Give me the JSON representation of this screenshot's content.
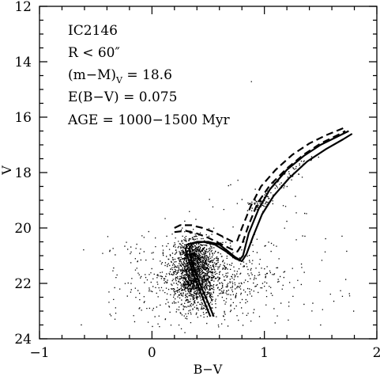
{
  "chart_data": {
    "type": "scatter",
    "xlabel": "B−V",
    "ylabel": "V",
    "xlim": [
      -1,
      2
    ],
    "ylim": [
      24,
      12
    ],
    "y_inverted": true,
    "x_ticks": [
      -1,
      0,
      1,
      2
    ],
    "x_tick_labels": [
      "−1",
      "0",
      "1",
      "2"
    ],
    "y_ticks": [
      12,
      14,
      16,
      18,
      20,
      22,
      24
    ],
    "y_tick_labels": [
      "12",
      "14",
      "16",
      "18",
      "20",
      "22",
      "24"
    ],
    "grid": false,
    "legend": "none",
    "annotations": {
      "line1": "IC2146",
      "line2": "R < 60″",
      "line3_main": "(m−M)",
      "line3_sub": "V",
      "line3_tail": " = 18.6",
      "line4": "E(B−V) = 0.075",
      "line5": "AGE = 1000−1500 Myr"
    },
    "series": [
      {
        "style": "solid",
        "points": [
          [
            0.52,
            23.2
          ],
          [
            0.47,
            22.7
          ],
          [
            0.42,
            22.2
          ],
          [
            0.37,
            21.7
          ],
          [
            0.33,
            21.2
          ],
          [
            0.3,
            20.8
          ],
          [
            0.31,
            20.6
          ],
          [
            0.4,
            20.5
          ],
          [
            0.5,
            20.5
          ],
          [
            0.6,
            20.6
          ],
          [
            0.68,
            20.85
          ],
          [
            0.74,
            21.05
          ],
          [
            0.78,
            21.15
          ],
          [
            0.81,
            21.0
          ],
          [
            0.86,
            20.2
          ],
          [
            0.95,
            19.3
          ],
          [
            1.05,
            18.6
          ],
          [
            1.2,
            17.9
          ],
          [
            1.35,
            17.4
          ],
          [
            1.5,
            17.0
          ],
          [
            1.65,
            16.7
          ],
          [
            1.75,
            16.5
          ]
        ]
      },
      {
        "style": "dashed",
        "points": [
          [
            0.2,
            20.0
          ],
          [
            0.25,
            19.9
          ],
          [
            0.35,
            19.9
          ],
          [
            0.45,
            20.0
          ],
          [
            0.55,
            20.15
          ],
          [
            0.65,
            20.35
          ],
          [
            0.72,
            20.5
          ],
          [
            0.76,
            20.45
          ],
          [
            0.8,
            20.0
          ],
          [
            0.88,
            19.2
          ],
          [
            0.97,
            18.5
          ],
          [
            1.1,
            17.9
          ],
          [
            1.25,
            17.35
          ],
          [
            1.4,
            16.95
          ],
          [
            1.55,
            16.65
          ],
          [
            1.7,
            16.4
          ]
        ]
      },
      {
        "style": "dashed",
        "points": [
          [
            0.2,
            20.15
          ],
          [
            0.3,
            20.1
          ],
          [
            0.4,
            20.2
          ],
          [
            0.5,
            20.35
          ],
          [
            0.6,
            20.55
          ],
          [
            0.7,
            20.75
          ],
          [
            0.76,
            20.85
          ],
          [
            0.8,
            20.6
          ],
          [
            0.86,
            19.9
          ],
          [
            0.94,
            19.1
          ],
          [
            1.05,
            18.45
          ],
          [
            1.2,
            17.85
          ],
          [
            1.35,
            17.35
          ],
          [
            1.5,
            16.95
          ],
          [
            1.65,
            16.65
          ],
          [
            1.72,
            16.5
          ]
        ]
      },
      {
        "style": "solid",
        "points": [
          [
            0.55,
            23.2
          ],
          [
            0.5,
            22.7
          ],
          [
            0.44,
            22.15
          ],
          [
            0.39,
            21.65
          ],
          [
            0.35,
            21.15
          ],
          [
            0.33,
            20.75
          ],
          [
            0.36,
            20.55
          ],
          [
            0.46,
            20.5
          ],
          [
            0.56,
            20.6
          ],
          [
            0.66,
            20.85
          ],
          [
            0.74,
            21.1
          ],
          [
            0.8,
            21.2
          ],
          [
            0.84,
            20.95
          ],
          [
            0.9,
            20.3
          ],
          [
            0.98,
            19.5
          ],
          [
            1.08,
            18.85
          ],
          [
            1.22,
            18.2
          ],
          [
            1.38,
            17.6
          ],
          [
            1.55,
            17.15
          ],
          [
            1.7,
            16.8
          ],
          [
            1.78,
            16.6
          ]
        ]
      }
    ],
    "scatter_description": "~2500 field and cluster stars clustered mainly around B−V 0.2–0.6, V 20.3–23, plus red giant branch and clump stars near B−V 0.9–1.3, V 18–19.5"
  }
}
